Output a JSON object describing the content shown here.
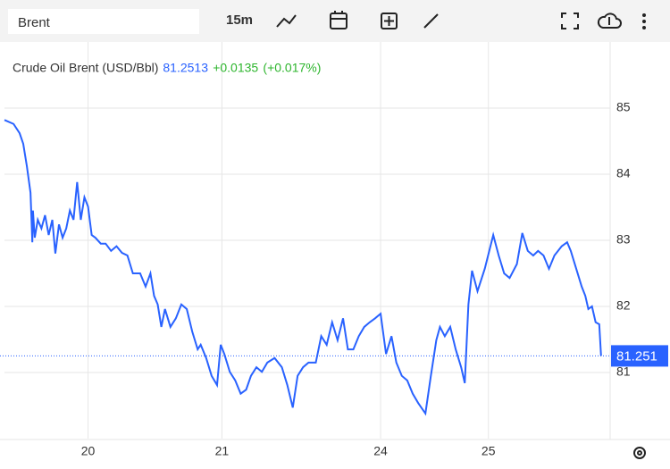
{
  "toolbar": {
    "symbol": "Brent",
    "interval": "15m"
  },
  "chart_data": {
    "type": "line",
    "change": "+0.0135",
    "change_pct": "(+0.017%)",
    "last_label": "81.251",
    "xlim": [
      0,
      100
    ],
    "xticks": [
      {
        "value": 13.8,
        "label": "20"
      },
      {
        "value": 35.9,
        "label": "21"
      },
      {
        "value": 62.1,
        "label": "24"
      },
      {
        "value": 79.9,
        "label": "25"
      }
    ],
    "ylim": [
      80,
      86
    ],
    "yticks": [
      81,
      82,
      83,
      84,
      85
    ],
    "grid": true,
    "series": [
      {
        "name": "Crude Oil Brent (USD/Bbl)",
        "color": "#2962ff",
        "x": [
          0,
          1.5,
          2.5,
          3.1,
          3.7,
          4.3,
          4.6,
          4.7,
          5.0,
          5.5,
          6.1,
          6.7,
          7.3,
          7.9,
          8.4,
          9.0,
          9.6,
          10.2,
          10.8,
          11.4,
          12.0,
          12.6,
          13.2,
          13.8,
          14.4,
          15.0,
          15.9,
          16.7,
          17.6,
          18.5,
          19.4,
          20.3,
          21.2,
          22.4,
          23.3,
          24.1,
          24.7,
          25.3,
          25.9,
          26.5,
          27.4,
          28.3,
          29.2,
          30.1,
          31.0,
          31.9,
          32.4,
          33.3,
          34.2,
          35.1,
          35.7,
          36.3,
          37.2,
          38.1,
          39.0,
          39.9,
          40.7,
          41.6,
          42.5,
          43.4,
          44.6,
          45.8,
          46.7,
          47.6,
          48.4,
          49.3,
          50.2,
          51.4,
          52.3,
          53.2,
          54.1,
          55.0,
          55.9,
          56.7,
          57.6,
          58.5,
          59.4,
          60.3,
          61.2,
          62.1,
          63.0,
          63.9,
          64.7,
          65.6,
          66.5,
          67.4,
          68.3,
          69.5,
          70.4,
          71.3,
          71.9,
          72.7,
          73.6,
          74.5,
          75.4,
          76.0,
          76.6,
          77.2,
          78.1,
          79.3,
          80.7,
          81.6,
          82.5,
          83.4,
          84.6,
          85.5,
          86.4,
          87.3,
          88.1,
          89.0,
          89.9,
          90.8,
          92.0,
          92.9,
          93.5,
          94.4,
          95.3,
          95.9,
          96.4,
          97.0,
          97.6,
          98.2,
          98.5
        ],
        "values": [
          84.82,
          84.76,
          84.62,
          84.46,
          84.12,
          83.72,
          82.97,
          83.45,
          83.04,
          83.31,
          83.18,
          83.38,
          83.08,
          83.31,
          82.8,
          83.24,
          83.04,
          83.18,
          83.45,
          83.31,
          83.88,
          83.31,
          83.65,
          83.51,
          83.08,
          83.04,
          82.95,
          82.95,
          82.84,
          82.91,
          82.81,
          82.77,
          82.5,
          82.5,
          82.3,
          82.5,
          82.16,
          82.03,
          81.69,
          81.96,
          81.69,
          81.82,
          82.03,
          81.96,
          81.62,
          81.35,
          81.42,
          81.22,
          80.95,
          80.81,
          81.42,
          81.28,
          81.01,
          80.88,
          80.68,
          80.74,
          80.95,
          81.08,
          81.01,
          81.15,
          81.22,
          81.08,
          80.81,
          80.47,
          80.95,
          81.08,
          81.15,
          81.15,
          81.55,
          81.42,
          81.76,
          81.49,
          81.82,
          81.35,
          81.35,
          81.55,
          81.69,
          81.76,
          81.82,
          81.89,
          81.28,
          81.55,
          81.15,
          80.95,
          80.88,
          80.68,
          80.54,
          80.38,
          80.95,
          81.49,
          81.69,
          81.55,
          81.69,
          81.35,
          81.08,
          80.84,
          82.03,
          82.54,
          82.23,
          82.57,
          83.08,
          82.77,
          82.5,
          82.43,
          82.64,
          83.11,
          82.84,
          82.77,
          82.84,
          82.77,
          82.57,
          82.77,
          82.91,
          82.97,
          82.84,
          82.57,
          82.3,
          82.16,
          81.96,
          82.0,
          81.76,
          81.73,
          81.2513
        ]
      }
    ]
  }
}
